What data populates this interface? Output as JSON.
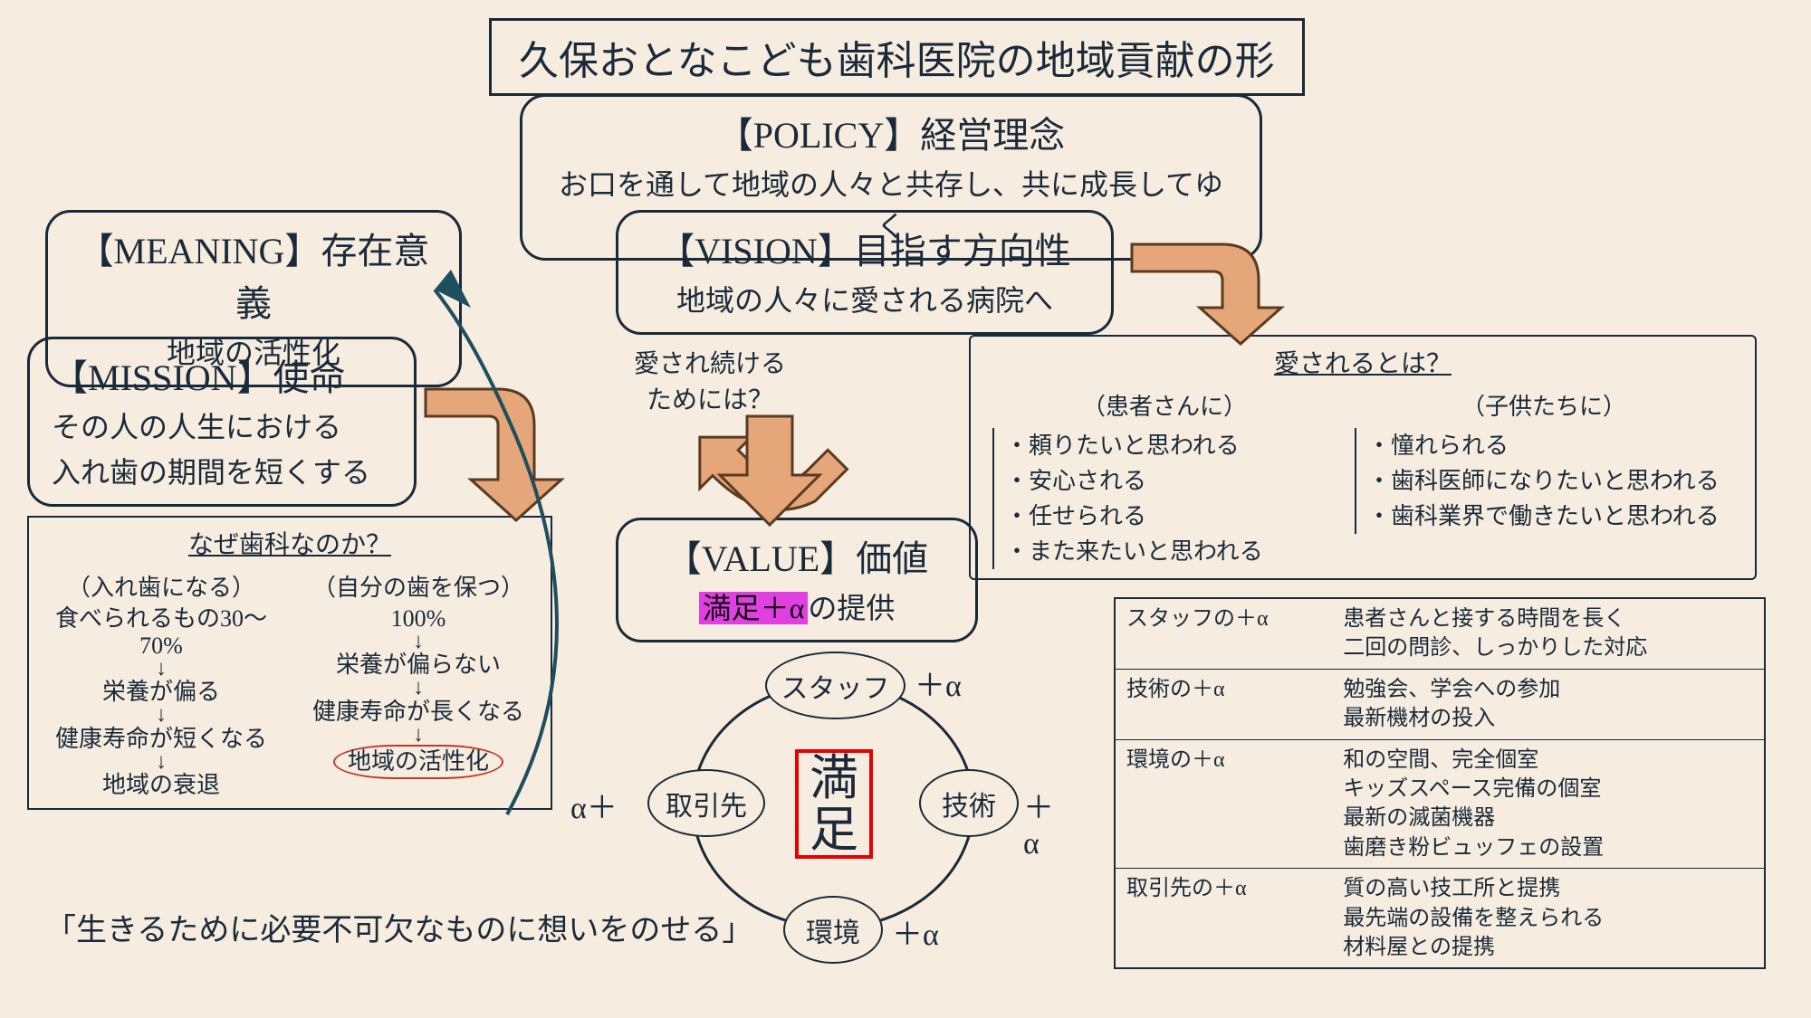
{
  "colors": {
    "bg": "#f6ecdf",
    "ink": "#1a2a3a",
    "arrow_fill": "#e5a679",
    "arrow_stroke": "#5a3b22",
    "highlight_bg": "#e040e0",
    "red_border": "#e60000",
    "red_circle": "#c0392b",
    "teal_arrow": "#1f4e5f"
  },
  "title": "久保おとなこども歯科医院の地域貢献の形",
  "policy": {
    "heading": "【POLICY】経営理念",
    "body": "お口を通して地域の人々と共存し、共に成長してゆく"
  },
  "meaning": {
    "heading": "【MEANING】存在意義",
    "body": "地域の活性化"
  },
  "mission": {
    "heading": "【MISSION】使命",
    "body_line1": "その人の人生における",
    "body_line2": "入れ歯の期間を短くする"
  },
  "vision": {
    "heading": "【VISION】目指す方向性",
    "body": "地域の人々に愛される病院へ"
  },
  "center_q1_line1": "愛され続ける",
  "center_q1_line2": "ためには？",
  "value": {
    "heading": "【VALUE】価値",
    "hl": "満足＋α",
    "suffix": "の提供"
  },
  "loved": {
    "title": "愛されるとは？",
    "left_head": "（患者さんに）",
    "left_items": [
      "・頼りたいと思われる",
      "・安心される",
      "・任せられる",
      "・また来たいと思われる"
    ],
    "right_head": "（子供たちに）",
    "right_items": [
      "・憧れられる",
      "・歯科医師になりたいと思われる",
      "・歯科業界で働きたいと思われる"
    ]
  },
  "why_dental": {
    "title": "なぜ歯科なのか？",
    "left_head": "（入れ歯になる）",
    "left_steps": [
      "食べられるもの30～70%",
      "↓",
      "栄養が偏る",
      "↓",
      "健康寿命が短くなる",
      "↓",
      "地域の衰退"
    ],
    "right_head": "（自分の歯を保つ）",
    "right_steps": [
      "100%",
      "↓",
      "栄養が偏らない",
      "↓",
      "健康寿命が長くなる",
      "↓"
    ],
    "right_final": "地域の活性化"
  },
  "quote": "「生きるために必要不可欠なものに想いをのせる」",
  "bubble": {
    "center": "満\n足",
    "top": "スタッフ",
    "right": "技術",
    "bottom": "環境",
    "left": "取引先",
    "alpha": "＋α",
    "alpha_rev": "α＋"
  },
  "alpha_table": [
    {
      "k": "スタッフの＋α",
      "v": "患者さんと接する時間を長く\n二回の問診、しっかりした対応"
    },
    {
      "k": "技術の＋α",
      "v": "勉強会、学会への参加\n最新機材の投入"
    },
    {
      "k": "環境の＋α",
      "v": "和の空間、完全個室\nキッズスペース完備の個室\n最新の滅菌機器\n歯磨き粉ビュッフェの設置"
    },
    {
      "k": "取引先の＋α",
      "v": "質の高い技工所と提携\n最先端の設備を整えられる\n材料屋との提携"
    }
  ]
}
